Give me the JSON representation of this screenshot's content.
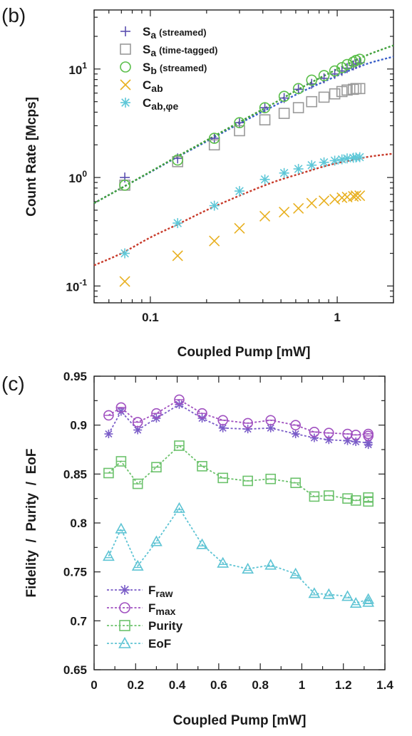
{
  "chart_data": [
    {
      "panel": "(b)",
      "type": "scatter",
      "xlabel": "Coupled Pump [mW]",
      "ylabel": "Count Rate [Mcps]",
      "xscale": "log",
      "yscale": "log",
      "xlim": [
        0.05,
        2.0
      ],
      "ylim": [
        0.07,
        35
      ],
      "x_ticks": [
        {
          "value": 0.1,
          "label": "0.1"
        },
        {
          "value": 1,
          "label": "1"
        }
      ],
      "y_ticks": [
        {
          "value": 0.1,
          "base": "10",
          "exp": "-1"
        },
        {
          "value": 1,
          "base": "10",
          "exp": "0"
        },
        {
          "value": 10,
          "base": "10",
          "exp": "1"
        }
      ],
      "legend_position": "top-left",
      "series": [
        {
          "name": "S",
          "sub": "a",
          "note": "(streamed)",
          "marker": "plus",
          "color": "#5b4fb0",
          "x": [
            0.073,
            0.14,
            0.22,
            0.3,
            0.41,
            0.52,
            0.62,
            0.73,
            0.85,
            0.97,
            1.06,
            1.13,
            1.22,
            1.26,
            1.32
          ],
          "y": [
            1.0,
            1.5,
            2.3,
            3.2,
            4.4,
            5.4,
            6.5,
            7.3,
            8.2,
            9.0,
            9.6,
            10.2,
            10.8,
            11.1,
            11.4
          ]
        },
        {
          "name": "S",
          "sub": "a",
          "note": "(time-tagged)",
          "marker": "square",
          "color": "#9a9a9a",
          "x": [
            0.073,
            0.14,
            0.22,
            0.3,
            0.41,
            0.52,
            0.62,
            0.73,
            0.85,
            0.97,
            1.06,
            1.13,
            1.22,
            1.26,
            1.32
          ],
          "y": [
            0.85,
            1.4,
            2.0,
            2.7,
            3.4,
            3.9,
            4.4,
            5.0,
            5.5,
            5.9,
            6.2,
            6.4,
            6.5,
            6.6,
            6.6
          ]
        },
        {
          "name": "S",
          "sub": "b",
          "note": "(streamed)",
          "marker": "circle",
          "color": "#5bbf4a",
          "x": [
            0.073,
            0.14,
            0.22,
            0.3,
            0.41,
            0.52,
            0.62,
            0.73,
            0.85,
            0.97,
            1.06,
            1.13,
            1.22,
            1.26,
            1.32
          ],
          "y": [
            0.85,
            1.45,
            2.3,
            3.2,
            4.4,
            5.6,
            6.6,
            7.9,
            8.7,
            9.6,
            10.3,
            11.0,
            11.6,
            12.0,
            12.3
          ]
        },
        {
          "name": "C",
          "sub": "ab",
          "note": "",
          "marker": "x",
          "color": "#e8b020",
          "x": [
            0.073,
            0.14,
            0.22,
            0.3,
            0.41,
            0.52,
            0.62,
            0.73,
            0.85,
            0.97,
            1.06,
            1.13,
            1.22,
            1.26,
            1.32
          ],
          "y": [
            0.11,
            0.19,
            0.26,
            0.34,
            0.44,
            0.48,
            0.52,
            0.58,
            0.61,
            0.63,
            0.65,
            0.66,
            0.67,
            0.68,
            0.68
          ]
        },
        {
          "name": "C",
          "sub": "ab,φe",
          "note": "",
          "marker": "asterisk",
          "color": "#5fc8d8",
          "x": [
            0.073,
            0.14,
            0.22,
            0.3,
            0.41,
            0.52,
            0.62,
            0.73,
            0.85,
            0.97,
            1.06,
            1.13,
            1.22,
            1.26,
            1.32
          ],
          "y": [
            0.2,
            0.38,
            0.55,
            0.75,
            0.96,
            1.1,
            1.2,
            1.3,
            1.38,
            1.43,
            1.47,
            1.5,
            1.52,
            1.53,
            1.54
          ]
        }
      ],
      "fits": [
        {
          "color": "#3a5fc8",
          "x": [
            0.05,
            0.07,
            0.1,
            0.14,
            0.2,
            0.3,
            0.45,
            0.65,
            0.9,
            1.2,
            1.5,
            2.0
          ],
          "y": [
            0.58,
            0.8,
            1.12,
            1.55,
            2.15,
            3.15,
            4.5,
            6.2,
            8.0,
            9.9,
            11.4,
            13.0
          ]
        },
        {
          "color": "#3f9f3a",
          "x": [
            0.05,
            0.07,
            0.1,
            0.14,
            0.2,
            0.3,
            0.45,
            0.65,
            0.9,
            1.2,
            1.5,
            2.0
          ],
          "y": [
            0.58,
            0.8,
            1.13,
            1.57,
            2.2,
            3.25,
            4.75,
            6.8,
            9.1,
            11.6,
            13.8,
            16.5
          ]
        },
        {
          "color": "#c83a2a",
          "x": [
            0.05,
            0.07,
            0.1,
            0.14,
            0.2,
            0.3,
            0.45,
            0.65,
            0.9,
            1.2,
            1.5,
            2.0
          ],
          "y": [
            0.155,
            0.2,
            0.28,
            0.37,
            0.5,
            0.68,
            0.9,
            1.1,
            1.3,
            1.45,
            1.56,
            1.66
          ]
        }
      ]
    },
    {
      "panel": "(c)",
      "type": "line",
      "xlabel": "Coupled Pump [mW]",
      "ylabel": "Fidelity  /  Purity  /  EoF",
      "xlim": [
        0,
        1.4
      ],
      "ylim": [
        0.65,
        0.95
      ],
      "x_ticks": [
        "0",
        "0.2",
        "0.4",
        "0.6",
        "0.8",
        "1",
        "1.2",
        "1.4"
      ],
      "x_tick_values": [
        0,
        0.2,
        0.4,
        0.6,
        0.8,
        1.0,
        1.2,
        1.4
      ],
      "y_ticks": [
        "0.65",
        "0.7",
        "0.75",
        "0.8",
        "0.85",
        "0.9",
        "0.95"
      ],
      "y_tick_values": [
        0.65,
        0.7,
        0.75,
        0.8,
        0.85,
        0.9,
        0.95
      ],
      "legend_position": "bottom-left",
      "x": [
        0.07,
        0.13,
        0.21,
        0.3,
        0.41,
        0.52,
        0.62,
        0.74,
        0.85,
        0.97,
        1.06,
        1.13,
        1.22,
        1.26,
        1.32,
        1.32
      ],
      "series": [
        {
          "name": "F",
          "sub": "raw",
          "marker": "asterisk",
          "color": "#7a5cc8",
          "values": [
            0.891,
            0.914,
            0.895,
            0.907,
            0.921,
            0.907,
            0.897,
            0.896,
            0.897,
            0.891,
            0.887,
            0.885,
            0.884,
            0.883,
            0.882,
            0.88
          ]
        },
        {
          "name": "F",
          "sub": "max",
          "marker": "circle",
          "color": "#a050c0",
          "values": [
            0.91,
            0.918,
            0.903,
            0.912,
            0.926,
            0.912,
            0.905,
            0.902,
            0.905,
            0.9,
            0.893,
            0.892,
            0.891,
            0.89,
            0.891,
            0.889
          ]
        },
        {
          "name": "Purity",
          "sub": "",
          "marker": "square",
          "color": "#6cc26c",
          "values": [
            0.851,
            0.863,
            0.84,
            0.857,
            0.879,
            0.858,
            0.846,
            0.843,
            0.845,
            0.841,
            0.827,
            0.828,
            0.825,
            0.823,
            0.826,
            0.822
          ]
        },
        {
          "name": "EoF",
          "sub": "",
          "marker": "triangle",
          "color": "#5ec4d4",
          "values": [
            0.766,
            0.794,
            0.756,
            0.781,
            0.815,
            0.778,
            0.759,
            0.753,
            0.757,
            0.748,
            0.728,
            0.727,
            0.725,
            0.718,
            0.722,
            0.719
          ]
        }
      ]
    }
  ]
}
